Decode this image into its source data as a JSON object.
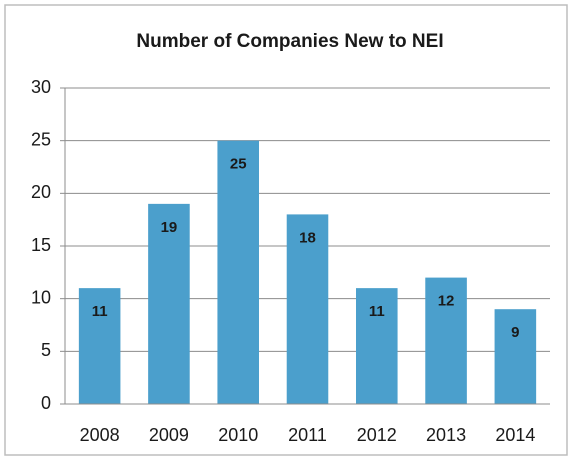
{
  "chart_data": {
    "type": "bar",
    "title": "Number of Companies New to NEI",
    "categories": [
      "2008",
      "2009",
      "2010",
      "2011",
      "2012",
      "2013",
      "2014"
    ],
    "values": [
      11,
      19,
      25,
      18,
      11,
      12,
      9
    ],
    "color": "#4b9fcc",
    "ylim": [
      0,
      30
    ],
    "yticks": [
      0,
      5,
      10,
      15,
      20,
      25,
      30
    ],
    "grid": true
  }
}
